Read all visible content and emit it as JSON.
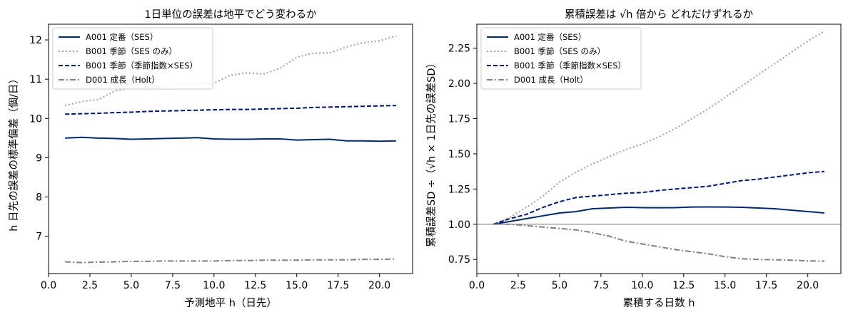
{
  "chart_data": [
    {
      "type": "line",
      "title": "1日単位の誤差は地平でどう変わるか",
      "xlabel": "予測地平 h（日先）",
      "ylabel": "h 日先の誤差の標準偏差（個/日）",
      "xlim": [
        0.0,
        22.0
      ],
      "ylim": [
        6.05,
        12.4
      ],
      "xticks": [
        "0.0",
        "2.5",
        "5.0",
        "7.5",
        "10.0",
        "12.5",
        "15.0",
        "17.5",
        "20.0"
      ],
      "yticks": [
        "7",
        "8",
        "9",
        "10",
        "11",
        "12"
      ],
      "grid": false,
      "legend_position": "top-left",
      "x": [
        1,
        2,
        3,
        4,
        5,
        6,
        7,
        8,
        9,
        10,
        11,
        12,
        13,
        14,
        15,
        16,
        17,
        18,
        19,
        20,
        21
      ],
      "series": [
        {
          "name": "A001 定番（SES）",
          "color": "#002a6e",
          "dash": "solid",
          "values": [
            9.5,
            9.52,
            9.5,
            9.49,
            9.47,
            9.48,
            9.49,
            9.5,
            9.51,
            9.48,
            9.47,
            9.47,
            9.48,
            9.48,
            9.45,
            9.46,
            9.47,
            9.43,
            9.43,
            9.42,
            9.43
          ]
        },
        {
          "name": "B001 季節（SES のみ）",
          "color": "#a0a0a0",
          "dash": "dotted",
          "values": [
            10.33,
            10.43,
            10.48,
            10.7,
            10.78,
            10.8,
            10.82,
            10.86,
            10.9,
            10.9,
            11.1,
            11.16,
            11.13,
            11.28,
            11.56,
            11.66,
            11.67,
            11.82,
            11.93,
            11.98,
            12.1
          ]
        },
        {
          "name": "B001 季節（季節指数×SES）",
          "color": "#00157a",
          "dash": "dashed",
          "values": [
            10.11,
            10.12,
            10.13,
            10.15,
            10.16,
            10.18,
            10.19,
            10.2,
            10.21,
            10.22,
            10.23,
            10.23,
            10.24,
            10.25,
            10.26,
            10.28,
            10.29,
            10.3,
            10.31,
            10.32,
            10.33
          ]
        },
        {
          "name": "D001 成長（Holt）",
          "color": "#808080",
          "dash": "dashdot",
          "values": [
            6.35,
            6.33,
            6.34,
            6.35,
            6.36,
            6.36,
            6.37,
            6.37,
            6.37,
            6.37,
            6.38,
            6.38,
            6.39,
            6.39,
            6.39,
            6.4,
            6.4,
            6.4,
            6.41,
            6.41,
            6.42
          ]
        }
      ]
    },
    {
      "type": "line",
      "title": "累積誤差は √h 倍から どれだけずれるか",
      "xlabel": "累積する日数 h",
      "ylabel": "累積誤差SD ÷（√h × 1日先の誤差SD）",
      "xlim": [
        0.0,
        22.0
      ],
      "ylim": [
        0.65,
        2.42
      ],
      "xticks": [
        "0.0",
        "2.5",
        "5.0",
        "7.5",
        "10.0",
        "12.5",
        "15.0",
        "17.5",
        "20.0"
      ],
      "yticks": [
        "0.75",
        "1.00",
        "1.25",
        "1.50",
        "1.75",
        "2.00",
        "2.25"
      ],
      "grid": false,
      "legend_position": "top-left",
      "reference_line": 1.0,
      "x": [
        1,
        2,
        3,
        4,
        5,
        6,
        7,
        8,
        9,
        10,
        11,
        12,
        13,
        14,
        15,
        16,
        17,
        18,
        19,
        20,
        21
      ],
      "series": [
        {
          "name": "A001 定番（SES）",
          "color": "#002a6e",
          "dash": "solid",
          "values": [
            1.0,
            1.02,
            1.04,
            1.06,
            1.08,
            1.09,
            1.11,
            1.115,
            1.12,
            1.118,
            1.117,
            1.118,
            1.122,
            1.123,
            1.122,
            1.12,
            1.115,
            1.11,
            1.1,
            1.09,
            1.08
          ]
        },
        {
          "name": "B001 季節（SES のみ）",
          "color": "#a0a0a0",
          "dash": "dotted",
          "values": [
            1.0,
            1.05,
            1.12,
            1.2,
            1.3,
            1.37,
            1.43,
            1.48,
            1.53,
            1.57,
            1.62,
            1.68,
            1.75,
            1.82,
            1.9,
            1.98,
            2.06,
            2.14,
            2.22,
            2.3,
            2.37
          ]
        },
        {
          "name": "B001 季節（季節指数×SES）",
          "color": "#00157a",
          "dash": "dashed",
          "values": [
            1.0,
            1.04,
            1.07,
            1.12,
            1.16,
            1.19,
            1.2,
            1.21,
            1.22,
            1.225,
            1.24,
            1.25,
            1.26,
            1.27,
            1.29,
            1.31,
            1.32,
            1.335,
            1.35,
            1.365,
            1.375
          ]
        },
        {
          "name": "D001 成長（Holt）",
          "color": "#808080",
          "dash": "dashdot",
          "values": [
            1.0,
            1.0,
            0.99,
            0.98,
            0.97,
            0.96,
            0.94,
            0.915,
            0.88,
            0.86,
            0.84,
            0.82,
            0.805,
            0.79,
            0.77,
            0.755,
            0.75,
            0.748,
            0.745,
            0.74,
            0.738
          ]
        }
      ]
    }
  ]
}
